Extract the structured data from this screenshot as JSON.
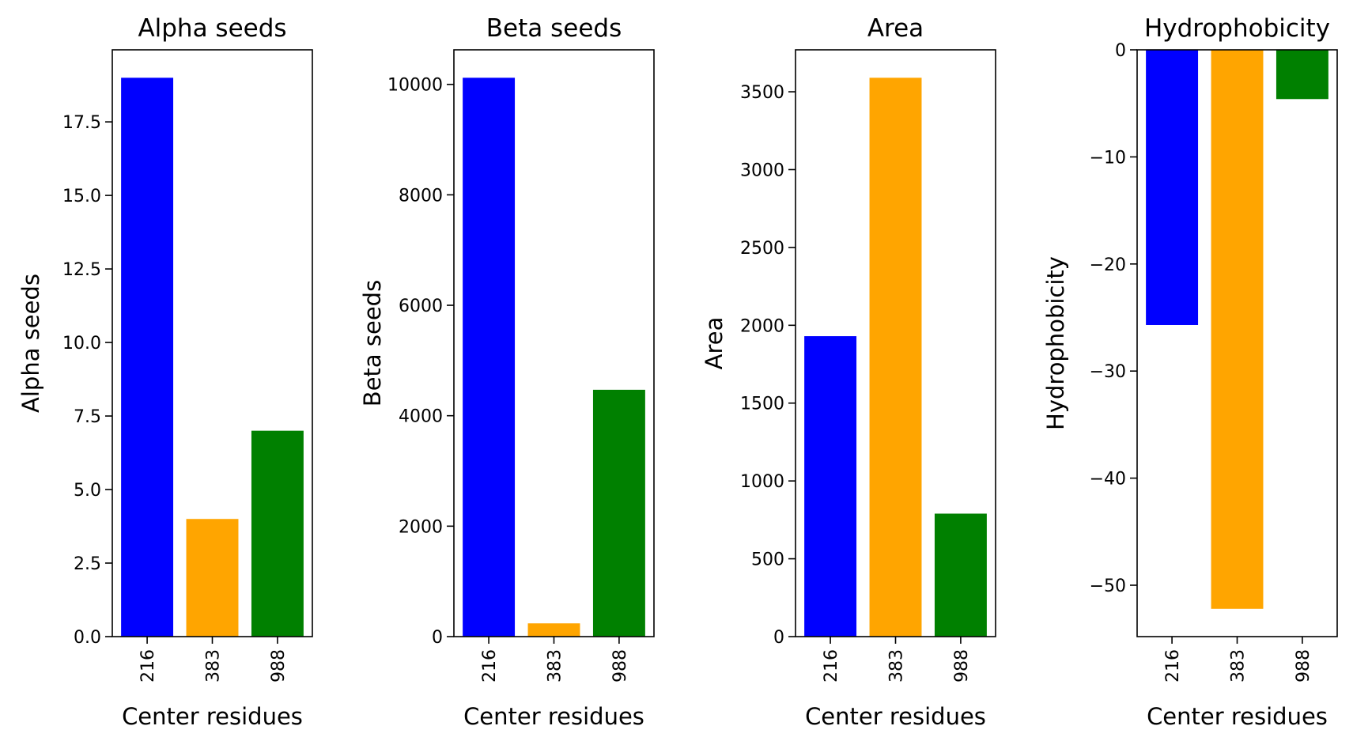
{
  "chart_data": [
    {
      "type": "bar",
      "title": "Alpha seeds",
      "xlabel": "Center residues",
      "ylabel": "Alpha seeds",
      "categories": [
        "216",
        "383",
        "988"
      ],
      "values": [
        19,
        4,
        7
      ],
      "colors": [
        "#0000ff",
        "#ffa500",
        "#008000"
      ],
      "ylim": [
        0,
        19.95
      ],
      "yticks": [
        0.0,
        2.5,
        5.0,
        7.5,
        10.0,
        12.5,
        15.0,
        17.5
      ],
      "ytick_labels": [
        "0.0",
        "2.5",
        "5.0",
        "7.5",
        "10.0",
        "12.5",
        "15.0",
        "17.5"
      ],
      "grid": false
    },
    {
      "type": "bar",
      "title": "Beta seeds",
      "xlabel": "Center residues",
      "ylabel": "Beta seeds",
      "categories": [
        "216",
        "383",
        "988"
      ],
      "values": [
        10120,
        240,
        4470
      ],
      "colors": [
        "#0000ff",
        "#ffa500",
        "#008000"
      ],
      "ylim": [
        0,
        10626
      ],
      "yticks": [
        0,
        2000,
        4000,
        6000,
        8000,
        10000
      ],
      "ytick_labels": [
        "0",
        "2000",
        "4000",
        "6000",
        "8000",
        "10000"
      ],
      "grid": false
    },
    {
      "type": "bar",
      "title": "Area",
      "xlabel": "Center residues",
      "ylabel": "Area",
      "categories": [
        "216",
        "383",
        "988"
      ],
      "values": [
        1930,
        3590,
        790
      ],
      "colors": [
        "#0000ff",
        "#ffa500",
        "#008000"
      ],
      "ylim": [
        0,
        3769.5
      ],
      "yticks": [
        0,
        500,
        1000,
        1500,
        2000,
        2500,
        3000,
        3500
      ],
      "ytick_labels": [
        "0",
        "500",
        "1000",
        "1500",
        "2000",
        "2500",
        "3000",
        "3500"
      ],
      "grid": false
    },
    {
      "type": "bar",
      "title": "Hydrophobicity",
      "xlabel": "Center residues",
      "ylabel": "Hydrophobicity",
      "categories": [
        "216",
        "383",
        "988"
      ],
      "values": [
        -25.7,
        -52.2,
        -4.6
      ],
      "colors": [
        "#0000ff",
        "#ffa500",
        "#008000"
      ],
      "ylim": [
        -54.8,
        0
      ],
      "yticks": [
        0,
        -10,
        -20,
        -30,
        -40,
        -50
      ],
      "ytick_labels": [
        "0",
        "−10",
        "−20",
        "−30",
        "−40",
        "−50"
      ],
      "grid": false
    }
  ]
}
